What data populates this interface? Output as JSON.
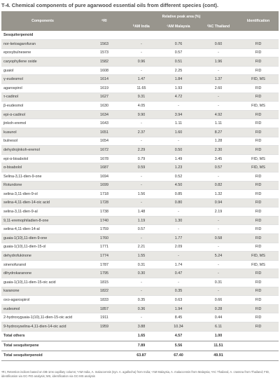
{
  "title": "T-4. Chemical components of pure agarwood essential oils from different species (cont).",
  "headers": {
    "components": "Components",
    "ri": "ᵃRI",
    "relative": "Relative peak area (%)",
    "india": "ᵇAM India",
    "malaysia": "ᶜAM Malaysia",
    "thailand": "ᵈAC Thailand",
    "identification": "Identification"
  },
  "section": "Sesquiterpenoid",
  "rows": [
    {
      "name": "nor-ketoagarofuran",
      "ri": "1563",
      "india": "-",
      "malaysia": "0.76",
      "thailand": "0.60",
      "id": "FID"
    },
    {
      "name": "epoxybulnesene",
      "ri": "1573",
      "india": "-",
      "malaysia": "0.57",
      "thailand": "-",
      "id": "FID"
    },
    {
      "name": "caryophyllene oxide",
      "ri": "1582",
      "india": "0.96",
      "malaysia": "0.51",
      "thailand": "1.96",
      "id": "FID"
    },
    {
      "name": "guaiol",
      "ri": "1608",
      "india": "-",
      "malaysia": "2.25",
      "thailand": "-",
      "id": "FID"
    },
    {
      "name": "γ-eudesmol",
      "ri": "1614",
      "india": "1.47",
      "malaysia": "1.84",
      "thailand": "1.37",
      "id": "FID, MS"
    },
    {
      "name": "agarospirol",
      "ri": "1619",
      "india": "11.65",
      "malaysia": "1.93",
      "thailand": "2.60",
      "id": "FID"
    },
    {
      "name": "τ-cadinol",
      "ri": "1627",
      "india": "9.31",
      "malaysia": "4.72",
      "thailand": "-",
      "id": "FID"
    },
    {
      "name": "β-eudesmol",
      "ri": "1630",
      "india": "4.05",
      "malaysia": "-",
      "thailand": "-",
      "id": "FID, MS"
    },
    {
      "name": "epi-α-cadinol",
      "ri": "1634",
      "india": "9.90",
      "malaysia": "3.94",
      "thailand": "4.92",
      "id": "FID"
    },
    {
      "name": "jinkoh-eremol",
      "ri": "1643",
      "india": "-",
      "malaysia": "1.11",
      "thailand": "1.11",
      "id": "FID"
    },
    {
      "name": "kusunol",
      "ri": "1651",
      "india": "2.37",
      "malaysia": "1.60",
      "thailand": "8.27",
      "id": "FID"
    },
    {
      "name": "bulnesol",
      "ri": "1654",
      "india": "-",
      "malaysia": "-",
      "thailand": "1.28",
      "id": "FID"
    },
    {
      "name": "dehydrojinkoh-eremol",
      "ri": "1672",
      "india": "2.29",
      "malaysia": "0.50",
      "thailand": "2.30",
      "id": "FID"
    },
    {
      "name": "epi-α-bisabolol",
      "ri": "1678",
      "india": "0.79",
      "malaysia": "1.49",
      "thailand": "3.45",
      "id": "FID, MS"
    },
    {
      "name": "α-bisabolol",
      "ri": "1687",
      "india": "0.59",
      "malaysia": "1.23",
      "thailand": "0.57",
      "id": "FID, MS"
    },
    {
      "name": "Selina-3,11-dien-9-one",
      "ri": "1694",
      "india": "-",
      "malaysia": "0.52",
      "thailand": "-",
      "id": "FID"
    },
    {
      "name": "Rotundone",
      "ri": "1699",
      "india": "-",
      "malaysia": "4.50",
      "thailand": "0.82",
      "id": "FID"
    },
    {
      "name": "selina-3,11-dien-9-ol",
      "ri": "1718",
      "india": "1.56",
      "malaysia": "0.85",
      "thailand": "1.32",
      "id": "FID"
    },
    {
      "name": "selina-4,11-dien-14-oic acid",
      "ri": "1728",
      "india": "-",
      "malaysia": "0.80",
      "thailand": "0.94",
      "id": "FID"
    },
    {
      "name": "selina-3,11-dien-9-al",
      "ri": "1738",
      "india": "1.48",
      "malaysia": "-",
      "thailand": "2.19",
      "id": "FID"
    },
    {
      "name": "9,11-eremophiladien-8-one",
      "ri": "1740",
      "india": "1.19",
      "malaysia": "1.30",
      "thailand": "-",
      "id": "FID"
    },
    {
      "name": "selina-4,11-dien-14-al",
      "ri": "1759",
      "india": "0.57",
      "malaysia": "-",
      "thailand": "-",
      "id": "FID"
    },
    {
      "name": "guaia-1(10),11-dien-9-one",
      "ri": "1760",
      "india": "-",
      "malaysia": "1.77",
      "thailand": "0.58",
      "id": "FID"
    },
    {
      "name": "guaia-1(10),11-dien-15-ol",
      "ri": "1771",
      "india": "2.21",
      "malaysia": "2.09",
      "thailand": "-",
      "id": "FID"
    },
    {
      "name": "dehydrofukinone",
      "ri": "1774",
      "india": "1.55",
      "malaysia": "-",
      "thailand": "5.24",
      "id": "FID, MS"
    },
    {
      "name": "sinenofuranol",
      "ri": "1787",
      "india": "0.31",
      "malaysia": "1.74",
      "thailand": "-",
      "id": "FID, MS"
    },
    {
      "name": "dihydrokaranone",
      "ri": "1795",
      "india": "0.30",
      "malaysia": "0.47",
      "thailand": "-",
      "id": "FID"
    },
    {
      "name": "guaia-1(10),11-dien-15-oic acid",
      "ri": "1815",
      "india": "-",
      "malaysia": "-",
      "thailand": "0.31",
      "id": "FID"
    },
    {
      "name": "karanone",
      "ri": "1822",
      "india": "-",
      "malaysia": "0.35",
      "thailand": "-",
      "id": "FID"
    },
    {
      "name": "oxo-agarospirol",
      "ri": "1833",
      "india": "0.35",
      "malaysia": "0.63",
      "thailand": "0.66",
      "id": "FID"
    },
    {
      "name": "eudesmol",
      "ri": "1857",
      "india": "0.36",
      "malaysia": "1.94",
      "thailand": "0.28",
      "id": "FID"
    },
    {
      "name": "2-hydroxyguaia-1(10),11-dien-15-oic acid",
      "ri": "1911",
      "india": "-",
      "malaysia": "8.45",
      "thailand": "0.44",
      "id": "FID"
    },
    {
      "name": "9-hydroxyselina-4,11-dien-14-oic acid",
      "ri": "1959",
      "india": "3.88",
      "malaysia": "10.34",
      "thailand": "6.11",
      "id": "FID"
    }
  ],
  "totals": [
    {
      "name": "Total others",
      "india": "1.65",
      "malaysia": "4.57",
      "thailand": "1.00"
    },
    {
      "name": "Total sesquiterpene",
      "india": "7.89",
      "malaysia": "5.56",
      "thailand": "11.51"
    },
    {
      "name": "Total sesquiterpenoid",
      "india": "63.87",
      "malaysia": "67.40",
      "thailand": "49.91"
    }
  ],
  "footnote": "ᵃRI, Retention indices based on DB-1ms capillary column; ᵇAM India, A. malaccensis (syn. A. agallocha) from India; ᶜAM Malaysia, A. malaccensis from Malaysia; ᵈAC Thailand, A. crassna from Thailand; FID, identification via GC-FID analysis; MS, identification via GC-MS analysis"
}
